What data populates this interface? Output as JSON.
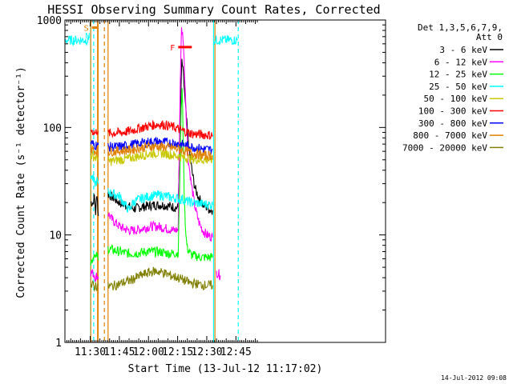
{
  "chart_data": {
    "type": "line",
    "title": "HESSI Observing Summary Count Rates, Corrected",
    "ylabel": "Corrected Count Rate (s⁻¹ detector⁻¹)",
    "xlabel": "Start Time (13-Jul-12 11:17:02)",
    "yscale": "log",
    "ylim": [
      1,
      1000
    ],
    "xlim_min": [
      0,
      165
    ],
    "x_unit": "minutes after 11:17:02",
    "y_ticks": [
      "1",
      "10",
      "100",
      "1000"
    ],
    "y_tick_values": [
      1,
      10,
      100,
      1000
    ],
    "x_ticks": [
      {
        "label": "11:30",
        "min": 13
      },
      {
        "label": "11:45",
        "min": 28
      },
      {
        "label": "12:00",
        "min": 43
      },
      {
        "label": "12:15",
        "min": 58
      },
      {
        "label": "12:30",
        "min": 73
      },
      {
        "label": "12:45",
        "min": 88
      }
    ],
    "legend_title": [
      "Det 1,3,5,6,7,9,",
      "Att 0"
    ],
    "legend_position": "right",
    "series": [
      {
        "name": "3 - 6 keV",
        "color": "#000000",
        "segs": [
          [
            [
              13.3,
              20
            ],
            [
              14.5,
              20
            ],
            [
              15.2,
              23
            ],
            [
              15.8,
              16
            ],
            [
              16.5,
              25
            ],
            [
              17.2,
              15
            ]
          ],
          [
            [
              22.2,
              24
            ],
            [
              25,
              22
            ],
            [
              28,
              20
            ],
            [
              31,
              19
            ],
            [
              34,
              18
            ],
            [
              36,
              17.5
            ],
            [
              38,
              18
            ],
            [
              42,
              18.5
            ],
            [
              46,
              19
            ],
            [
              50,
              19
            ],
            [
              54,
              18.5
            ],
            [
              57,
              18
            ],
            [
              58.3,
              18
            ],
            [
              59.3,
              120
            ],
            [
              60.2,
              420
            ],
            [
              61,
              300
            ],
            [
              62,
              160
            ],
            [
              63,
              95
            ],
            [
              64,
              60
            ],
            [
              65.5,
              38
            ],
            [
              67,
              27
            ],
            [
              69,
              22
            ],
            [
              71,
              19
            ],
            [
              73,
              18
            ],
            [
              75,
              17
            ],
            [
              76,
              17
            ]
          ]
        ]
      },
      {
        "name": "6 - 12 keV",
        "color": "#ff00ff",
        "segs": [
          [
            [
              13.3,
              4.5
            ],
            [
              14.5,
              4.4
            ],
            [
              15.2,
              4.2
            ],
            [
              15.8,
              4.0
            ],
            [
              16.5,
              4.2
            ],
            [
              17.2,
              4.0
            ]
          ],
          [
            [
              22.2,
              16
            ],
            [
              24,
              14
            ],
            [
              26,
              13
            ],
            [
              28,
              12
            ],
            [
              30,
              11.5
            ],
            [
              33,
              11
            ],
            [
              36,
              11
            ],
            [
              40,
              11.5
            ],
            [
              44,
              12
            ],
            [
              48,
              12
            ],
            [
              52,
              11.5
            ],
            [
              56,
              11
            ],
            [
              58.3,
              11.2
            ],
            [
              59.3,
              250
            ],
            [
              60,
              820
            ],
            [
              60.8,
              700
            ],
            [
              61.6,
              320
            ],
            [
              62.5,
              120
            ],
            [
              63.5,
              50
            ],
            [
              65,
              30
            ],
            [
              67,
              18
            ],
            [
              69,
              13
            ],
            [
              71,
              11
            ],
            [
              73,
              10
            ],
            [
              76,
              9.5
            ]
          ],
          [
            [
              78,
              4.5
            ],
            [
              80,
              4.2
            ]
          ]
        ]
      },
      {
        "name": "12 - 25 keV",
        "color": "#00ff00",
        "segs": [
          [
            [
              13.3,
              5.5
            ],
            [
              14.5,
              6.2
            ],
            [
              15.2,
              6.8
            ],
            [
              15.8,
              6.0
            ],
            [
              16.5,
              6.5
            ],
            [
              17.2,
              5.8
            ]
          ],
          [
            [
              22.2,
              7.5
            ],
            [
              25,
              7.2
            ],
            [
              28,
              7.0
            ],
            [
              31,
              6.8
            ],
            [
              34,
              6.7
            ],
            [
              38,
              6.8
            ],
            [
              42,
              7
            ],
            [
              46,
              7
            ],
            [
              50,
              6.9
            ],
            [
              54,
              6.7
            ],
            [
              58.3,
              6.8
            ],
            [
              59.2,
              40
            ],
            [
              59.8,
              140
            ],
            [
              60.3,
              250
            ],
            [
              60.8,
              90
            ],
            [
              61.4,
              25
            ],
            [
              62.2,
              10
            ],
            [
              63,
              7.5
            ],
            [
              65,
              6.5
            ],
            [
              70,
              6.2
            ],
            [
              76,
              6.2
            ]
          ]
        ]
      },
      {
        "name": "25 - 50 keV",
        "color": "#00ffff",
        "segs": [
          [
            [
              0,
              650
            ],
            [
              12.2,
              650
            ]
          ],
          [
            [
              13.3,
              36
            ],
            [
              14.5,
              33
            ],
            [
              15.2,
              31
            ],
            [
              15.8,
              30
            ],
            [
              16.5,
              32
            ],
            [
              17.2,
              30
            ]
          ],
          [
            [
              22.2,
              25
            ],
            [
              25,
              24
            ],
            [
              28,
              23
            ],
            [
              31,
              19
            ],
            [
              33,
              17
            ],
            [
              35,
              20
            ],
            [
              37,
              21
            ],
            [
              40,
              22
            ],
            [
              44,
              23
            ],
            [
              48,
              23.5
            ],
            [
              52,
              23
            ],
            [
              56,
              22
            ],
            [
              58.3,
              22
            ],
            [
              59.2,
              21
            ],
            [
              60.2,
              22
            ],
            [
              61,
              21
            ],
            [
              63,
              20.5
            ],
            [
              66,
              20
            ],
            [
              70,
              19.5
            ],
            [
              76,
              19
            ]
          ],
          [
            [
              76.5,
              650
            ],
            [
              89,
              650
            ]
          ]
        ]
      },
      {
        "name": "50 - 100 keV",
        "color": "#c8c800",
        "segs": [
          [
            [
              13.3,
              55
            ],
            [
              14.5,
              54
            ],
            [
              15.2,
              53
            ],
            [
              15.8,
              52
            ],
            [
              16.5,
              53
            ],
            [
              17.2,
              52
            ]
          ],
          [
            [
              22.2,
              48
            ],
            [
              28,
              50
            ],
            [
              32,
              51
            ],
            [
              36,
              53
            ],
            [
              40,
              55
            ],
            [
              44,
              57
            ],
            [
              48,
              58
            ],
            [
              52,
              57
            ],
            [
              56,
              55
            ],
            [
              58.3,
              54
            ],
            [
              60,
              53
            ],
            [
              63,
              52
            ],
            [
              66,
              51
            ],
            [
              70,
              50
            ],
            [
              76,
              50
            ]
          ]
        ]
      },
      {
        "name": "100 - 300 keV",
        "color": "#ff0000",
        "segs": [
          [
            [
              13.3,
              95
            ],
            [
              14.5,
              92
            ],
            [
              15.2,
              90
            ],
            [
              15.8,
              88
            ],
            [
              16.5,
              95
            ],
            [
              17.2,
              92
            ]
          ],
          [
            [
              22.2,
              88
            ],
            [
              26,
              89
            ],
            [
              30,
              90
            ],
            [
              34,
              93
            ],
            [
              38,
              98
            ],
            [
              42,
              102
            ],
            [
              45,
              105
            ],
            [
              48,
              107
            ],
            [
              51,
              106
            ],
            [
              54,
              103
            ],
            [
              57,
              99
            ],
            [
              60,
              94
            ],
            [
              63,
              90
            ],
            [
              66,
              87
            ],
            [
              70,
              86
            ],
            [
              74,
              85
            ],
            [
              76,
              85
            ]
          ]
        ]
      },
      {
        "name": "300 - 800 keV",
        "color": "#0000ff",
        "segs": [
          [
            [
              13.3,
              72
            ],
            [
              14.5,
              70
            ],
            [
              15.2,
              69
            ],
            [
              15.8,
              68
            ],
            [
              16.5,
              70
            ],
            [
              17.2,
              69
            ]
          ],
          [
            [
              22.2,
              66
            ],
            [
              26,
              66
            ],
            [
              30,
              67
            ],
            [
              34,
              69
            ],
            [
              38,
              71
            ],
            [
              42,
              73
            ],
            [
              46,
              74
            ],
            [
              50,
              73
            ],
            [
              54,
              72
            ],
            [
              58.3,
              71
            ],
            [
              61,
              69
            ],
            [
              64,
              67
            ],
            [
              67,
              65
            ],
            [
              71,
              63
            ],
            [
              76,
              62
            ]
          ]
        ]
      },
      {
        "name": "800 - 7000 keV",
        "color": "#e08000",
        "segs": [
          [
            [
              13.3,
              64
            ],
            [
              14.5,
              62
            ],
            [
              15.2,
              61
            ],
            [
              15.8,
              60
            ],
            [
              16.5,
              62
            ],
            [
              17.2,
              61
            ]
          ],
          [
            [
              22.2,
              60
            ],
            [
              26,
              60
            ],
            [
              30,
              61
            ],
            [
              34,
              62
            ],
            [
              38,
              64
            ],
            [
              42,
              66
            ],
            [
              46,
              67
            ],
            [
              50,
              66
            ],
            [
              54,
              65
            ],
            [
              58.3,
              63
            ],
            [
              61,
              61
            ],
            [
              64,
              59
            ],
            [
              67,
              57
            ],
            [
              71,
              55
            ],
            [
              76,
              55
            ]
          ]
        ]
      },
      {
        "name": "7000 - 20000 keV",
        "color": "#808000",
        "segs": [
          [
            [
              13.3,
              3.3
            ],
            [
              14.5,
              3.4
            ],
            [
              15.2,
              3.3
            ],
            [
              15.8,
              3.4
            ],
            [
              16.5,
              3.3
            ],
            [
              17.2,
              3.4
            ]
          ],
          [
            [
              22.2,
              3.3
            ],
            [
              26,
              3.4
            ],
            [
              30,
              3.6
            ],
            [
              34,
              3.8
            ],
            [
              38,
              4.1
            ],
            [
              42,
              4.4
            ],
            [
              46,
              4.6
            ],
            [
              50,
              4.5
            ],
            [
              54,
              4.2
            ],
            [
              58.3,
              4.0
            ],
            [
              61,
              3.8
            ],
            [
              64,
              3.6
            ],
            [
              68,
              3.5
            ],
            [
              72,
              3.4
            ],
            [
              76,
              3.4
            ]
          ]
        ]
      }
    ],
    "flags": [
      {
        "label": "S",
        "color": "#e08000",
        "x": [
          13.9,
          16.6
        ],
        "y": 850
      },
      {
        "label": "N",
        "color": "#00ffff",
        "x": [
          14.6,
          14.6
        ],
        "y": 720
      },
      {
        "label": "F",
        "color": "#ff0000",
        "x": [
          58.3,
          65.3
        ],
        "y": 560
      }
    ],
    "attenuator_state_lines": [
      {
        "min": 13.2,
        "style": "solid",
        "color": "#00ffff"
      },
      {
        "min": 13.3,
        "style": "solid",
        "color": "#e08000"
      },
      {
        "min": 16.8,
        "style": "solid",
        "color": "#e08000"
      },
      {
        "min": 17.1,
        "style": "solid",
        "color": "#e08000"
      },
      {
        "min": 22.2,
        "style": "solid",
        "color": "#e08000"
      },
      {
        "min": 76.5,
        "style": "solid",
        "color": "#00ffff"
      },
      {
        "min": 77.2,
        "style": "solid",
        "color": "#e08000"
      },
      {
        "min": 14.8,
        "style": "dashed",
        "color": "#00ffff"
      },
      {
        "min": 20.3,
        "style": "dashed",
        "color": "#e08000"
      },
      {
        "min": 89.2,
        "style": "dashed",
        "color": "#00ffff"
      }
    ]
  },
  "footer": {
    "date": "14-Jul-2012 09:08"
  }
}
